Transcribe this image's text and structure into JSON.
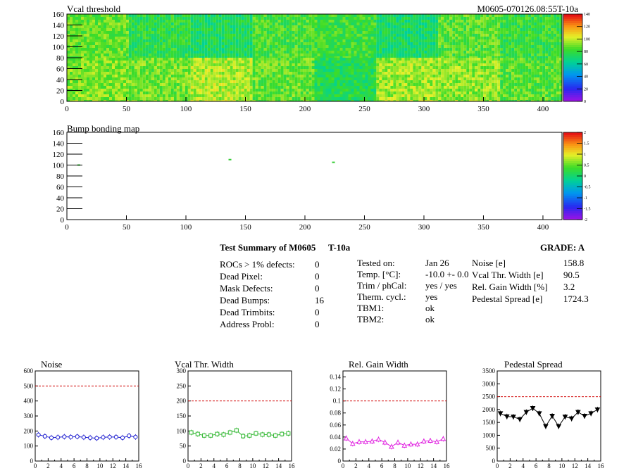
{
  "header": {
    "title_left": "Vcal threshold",
    "title_right": "M0605-070126.08:55T-10a"
  },
  "colors": {
    "noise": "#1f1fd0",
    "vcal": "#33b833",
    "gain": "#e020e0",
    "pedestal": "#000000",
    "limit_line": "#d00000"
  },
  "chart_data": [
    {
      "type": "heatmap",
      "title": "Vcal threshold",
      "xlim": [
        0,
        416
      ],
      "ylim": [
        0,
        160
      ],
      "x_ticks": [
        0,
        50,
        100,
        150,
        200,
        250,
        300,
        350,
        400
      ],
      "y_ticks": [
        0,
        20,
        40,
        60,
        80,
        100,
        120,
        140,
        160
      ],
      "z_range": [
        0,
        140
      ],
      "z_ticks": [
        0,
        20,
        40,
        60,
        80,
        100,
        120,
        140
      ],
      "palette": "rainbow",
      "roc_grid": {
        "cols": 8,
        "rows": 2,
        "col_width": 52,
        "row_height": 80
      },
      "roc_mean_values": {
        "top": [
          88,
          78,
          74,
          84,
          82,
          72,
          86,
          80
        ],
        "bottom": [
          92,
          90,
          98,
          88,
          76,
          96,
          94,
          86
        ]
      }
    },
    {
      "type": "heatmap",
      "title": "Bump bonding map",
      "xlim": [
        0,
        416
      ],
      "ylim": [
        0,
        160
      ],
      "x_ticks": [
        0,
        50,
        100,
        150,
        200,
        250,
        300,
        350,
        400
      ],
      "y_ticks": [
        0,
        20,
        40,
        60,
        80,
        100,
        120,
        140,
        160
      ],
      "z_range": [
        -2,
        2
      ],
      "z_ticks": [
        -2,
        -1.5,
        -1,
        -0.5,
        0,
        0.5,
        1,
        1.5,
        2
      ],
      "palette": "rainbow",
      "marks": [
        {
          "x": 10,
          "y": 100
        },
        {
          "x": 137,
          "y": 110
        },
        {
          "x": 224,
          "y": 105
        }
      ]
    },
    {
      "type": "line",
      "title": "Noise",
      "xlim": [
        0,
        16
      ],
      "ylim": [
        0,
        600
      ],
      "x_ticks": [
        0,
        2,
        4,
        6,
        8,
        10,
        12,
        14,
        16
      ],
      "y_ticks": [
        0,
        100,
        200,
        300,
        400,
        500,
        600
      ],
      "limit": 500,
      "marker": "circle",
      "x": [
        0.5,
        1.5,
        2.5,
        3.5,
        4.5,
        5.5,
        6.5,
        7.5,
        8.5,
        9.5,
        10.5,
        11.5,
        12.5,
        13.5,
        14.5,
        15.5
      ],
      "values": [
        175,
        165,
        155,
        158,
        162,
        160,
        163,
        158,
        155,
        152,
        158,
        160,
        160,
        155,
        168,
        160
      ]
    },
    {
      "type": "line",
      "title": "Vcal Thr. Width",
      "xlim": [
        0,
        16
      ],
      "ylim": [
        0,
        300
      ],
      "x_ticks": [
        0,
        2,
        4,
        6,
        8,
        10,
        12,
        14,
        16
      ],
      "y_ticks": [
        0,
        50,
        100,
        150,
        200,
        250,
        300
      ],
      "limit": 200,
      "marker": "square",
      "x": [
        0.5,
        1.5,
        2.5,
        3.5,
        4.5,
        5.5,
        6.5,
        7.5,
        8.5,
        9.5,
        10.5,
        11.5,
        12.5,
        13.5,
        14.5,
        15.5
      ],
      "values": [
        95,
        90,
        85,
        85,
        90,
        88,
        95,
        102,
        83,
        85,
        92,
        88,
        88,
        85,
        90,
        92
      ]
    },
    {
      "type": "line",
      "title": "Rel. Gain Width",
      "xlim": [
        0,
        16
      ],
      "ylim": [
        0,
        0.15
      ],
      "x_ticks": [
        0,
        2,
        4,
        6,
        8,
        10,
        12,
        14,
        16
      ],
      "y_ticks": [
        0,
        0.02,
        0.04,
        0.06,
        0.08,
        0.1,
        0.12,
        0.14
      ],
      "limit": 0.1,
      "marker": "triangle-up",
      "x": [
        0.5,
        1.5,
        2.5,
        3.5,
        4.5,
        5.5,
        6.5,
        7.5,
        8.5,
        9.5,
        10.5,
        11.5,
        12.5,
        13.5,
        14.5,
        15.5
      ],
      "values": [
        0.038,
        0.029,
        0.032,
        0.032,
        0.033,
        0.036,
        0.031,
        0.024,
        0.031,
        0.026,
        0.028,
        0.028,
        0.033,
        0.034,
        0.032,
        0.037
      ]
    },
    {
      "type": "line",
      "title": "Pedestal Spread",
      "xlim": [
        0,
        16
      ],
      "ylim": [
        0,
        3500
      ],
      "x_ticks": [
        0,
        2,
        4,
        6,
        8,
        10,
        12,
        14,
        16
      ],
      "y_ticks": [
        0,
        500,
        1000,
        1500,
        2000,
        2500,
        3000,
        3500
      ],
      "limit": 2500,
      "marker": "triangle-down",
      "x": [
        0.5,
        1.5,
        2.5,
        3.5,
        4.5,
        5.5,
        6.5,
        7.5,
        8.5,
        9.5,
        10.5,
        11.5,
        12.5,
        13.5,
        14.5,
        15.5
      ],
      "values": [
        1850,
        1730,
        1720,
        1620,
        1900,
        2050,
        1850,
        1350,
        1750,
        1350,
        1720,
        1650,
        1900,
        1750,
        1850,
        2000
      ]
    }
  ],
  "summary": {
    "title": "Test Summary of M0605",
    "test_id": "T-10a",
    "grade": "GRADE:  A",
    "col1": [
      {
        "label": "ROCs > 1% defects:",
        "value": "0"
      },
      {
        "label": "Dead Pixel:",
        "value": "0"
      },
      {
        "label": "Mask Defects:",
        "value": "0"
      },
      {
        "label": "Dead Bumps:",
        "value": "16"
      },
      {
        "label": "Dead Trimbits:",
        "value": "0"
      },
      {
        "label": "Address Probl:",
        "value": "0"
      }
    ],
    "col2": [
      {
        "label": "Tested on:",
        "value": "Jan 26"
      },
      {
        "label": "Temp. [°C]:",
        "value": "-10.0 +- 0.0"
      },
      {
        "label": "Trim / phCal:",
        "value": "yes / yes"
      },
      {
        "label": "Therm. cycl.:",
        "value": "yes"
      },
      {
        "label": "TBM1:",
        "value": "ok"
      },
      {
        "label": "TBM2:",
        "value": "ok"
      }
    ],
    "col3": [
      {
        "label": "Noise [e]",
        "value": "158.8"
      },
      {
        "label": "Vcal Thr. Width [e]",
        "value": "90.5"
      },
      {
        "label": "Rel. Gain Width [%]",
        "value": "3.2"
      },
      {
        "label": "Pedestal Spread [e]",
        "value": "1724.3"
      }
    ]
  }
}
